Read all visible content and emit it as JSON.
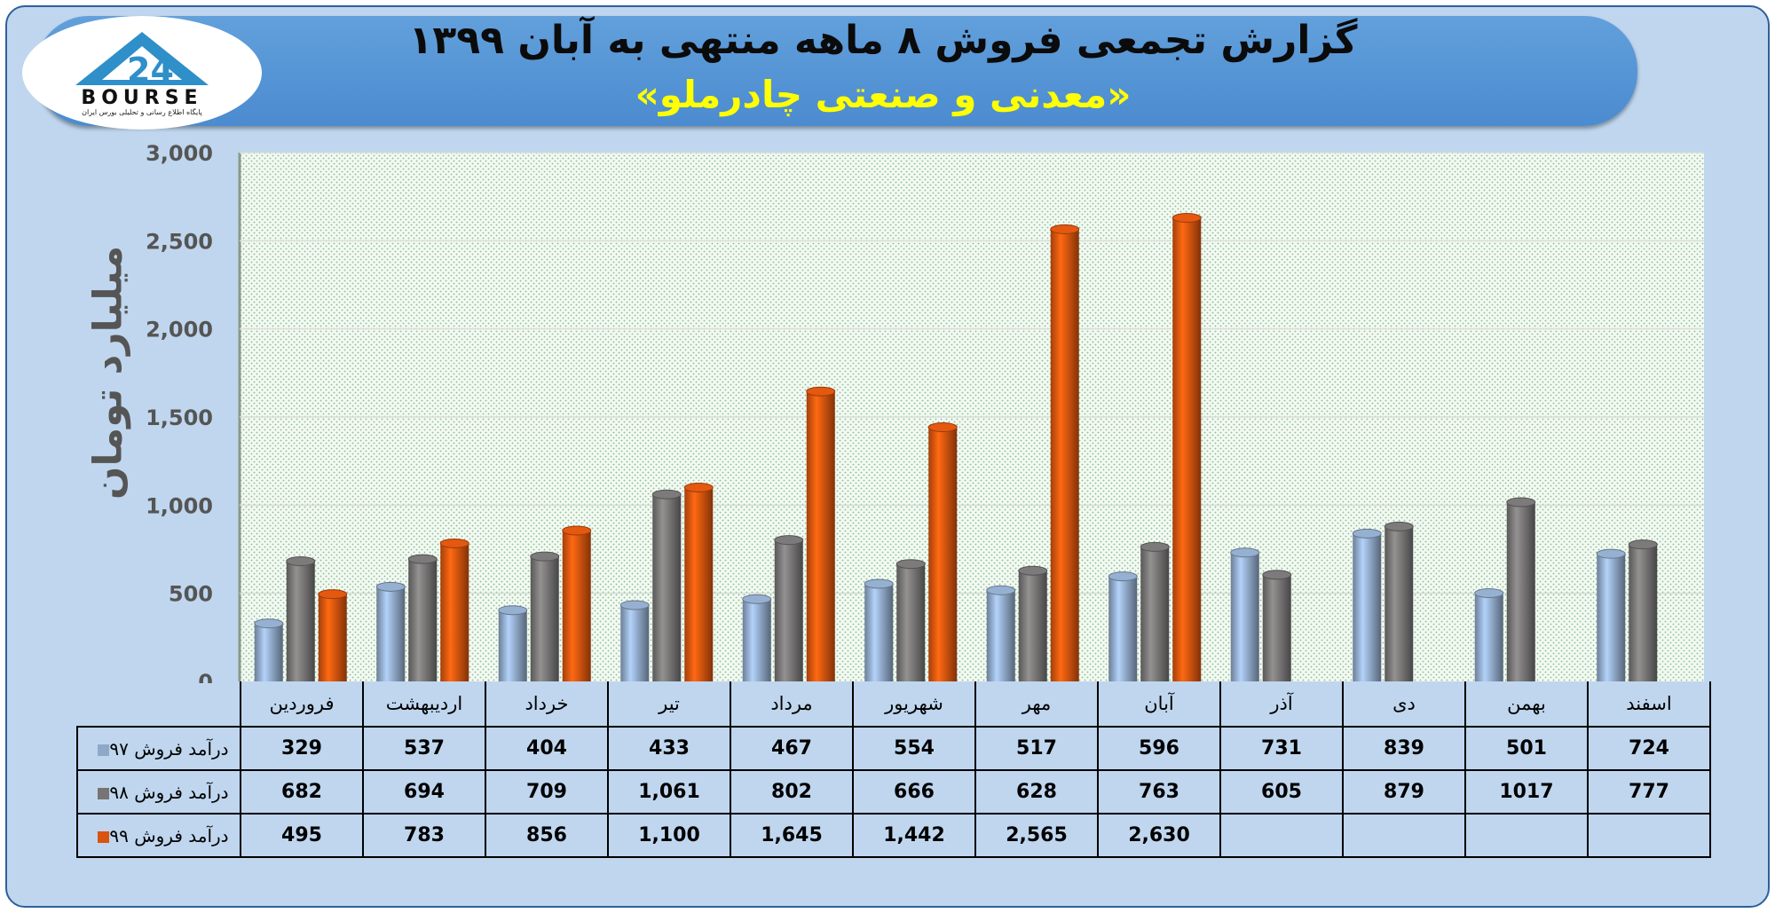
{
  "header": {
    "title": "گزارش تجمعی فروش ۸ ماهه منتهی به آبان ۱۳۹۹",
    "subtitle": "«معدنی و صنعتی چادرملو»",
    "logo_text": "BOURSE",
    "logo_tagline": "پایگاه اطلاع رسانی و تحلیلی بورس ایران"
  },
  "chart_data": {
    "type": "bar",
    "ylabel": "میلیارد تومان",
    "ylim": [
      0,
      3000
    ],
    "yticks": [
      0,
      500,
      1000,
      1500,
      2000,
      2500,
      3000
    ],
    "ytick_labels": [
      "0",
      "500",
      "1,000",
      "1,500",
      "2,000",
      "2,500",
      "3,000"
    ],
    "grid": true,
    "legend": "table-left",
    "categories": [
      "فروردین",
      "اردیبهشت",
      "خرداد",
      "تیر",
      "مرداد",
      "شهریور",
      "مهر",
      "آبان",
      "آذر",
      "دی",
      "بهمن",
      "اسفند"
    ],
    "series": [
      {
        "name": "درآمد فروش ۹۷",
        "color": "#8fa8c8",
        "values": [
          329,
          537,
          404,
          433,
          467,
          554,
          517,
          596,
          731,
          839,
          501,
          724
        ],
        "labels": [
          "329",
          "537",
          "404",
          "433",
          "467",
          "554",
          "517",
          "596",
          "731",
          "839",
          "501",
          "724"
        ]
      },
      {
        "name": "درآمد فروش ۹۸",
        "color": "#767474",
        "values": [
          682,
          694,
          709,
          1061,
          802,
          666,
          628,
          763,
          605,
          879,
          1017,
          777
        ],
        "labels": [
          "682",
          "694",
          "709",
          "1,061",
          "802",
          "666",
          "628",
          "763",
          "605",
          "879",
          "1017",
          "777"
        ]
      },
      {
        "name": "درآمد فروش ۹۹",
        "color": "#d9540e",
        "values": [
          495,
          783,
          856,
          1100,
          1645,
          1442,
          2565,
          2630,
          null,
          null,
          null,
          null
        ],
        "labels": [
          "495",
          "783",
          "856",
          "1,100",
          "1,645",
          "1,442",
          "2,565",
          "2,630",
          "",
          "",
          "",
          ""
        ]
      }
    ]
  }
}
